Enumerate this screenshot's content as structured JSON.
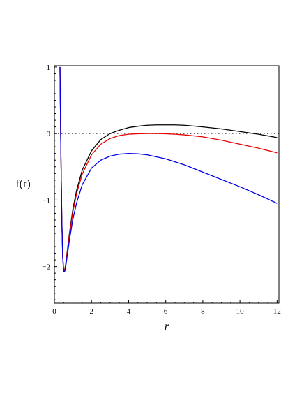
{
  "chart_data": {
    "type": "line",
    "title": "",
    "xlabel": "r",
    "ylabel": "f(r)",
    "xlim": [
      0,
      12.1
    ],
    "ylim": [
      -2.55,
      1.02
    ],
    "xticks": [
      0,
      2,
      4,
      6,
      8,
      10,
      12
    ],
    "xtick_labels": [
      "0",
      "2",
      "4",
      "6",
      "8",
      "10",
      "12"
    ],
    "yticks": [
      1,
      0,
      -1,
      -2
    ],
    "ytick_labels": [
      "1",
      "0",
      "−1",
      "−2"
    ],
    "grid": false,
    "reference_line": {
      "y": 0,
      "style": "dotted",
      "color": "#555555"
    },
    "series": [
      {
        "color": "#000000",
        "x": [
          0.3,
          0.35,
          0.4,
          0.45,
          0.5,
          0.55,
          0.6,
          0.7,
          0.8,
          1.0,
          1.2,
          1.5,
          2.0,
          2.5,
          3.0,
          3.5,
          4.0,
          4.5,
          5.0,
          5.5,
          6.0,
          6.5,
          7.0,
          8.0,
          9.0,
          10.0,
          11.0,
          12.0
        ],
        "y": [
          1.0,
          -0.3,
          -1.3,
          -1.85,
          -2.05,
          -2.05,
          -1.98,
          -1.75,
          -1.52,
          -1.13,
          -0.85,
          -0.55,
          -0.26,
          -0.09,
          0.0,
          0.05,
          0.09,
          0.11,
          0.125,
          0.13,
          0.13,
          0.13,
          0.125,
          0.1,
          0.07,
          0.03,
          -0.01,
          -0.06
        ]
      },
      {
        "color": "#e60000",
        "x": [
          0.3,
          0.35,
          0.4,
          0.45,
          0.5,
          0.55,
          0.6,
          0.7,
          0.8,
          1.0,
          1.2,
          1.5,
          2.0,
          2.5,
          3.0,
          3.5,
          4.0,
          4.5,
          5.0,
          5.5,
          6.0,
          6.5,
          7.0,
          8.0,
          9.0,
          10.0,
          11.0,
          12.0
        ],
        "y": [
          1.0,
          -0.3,
          -1.3,
          -1.87,
          -2.06,
          -2.06,
          -2.0,
          -1.77,
          -1.55,
          -1.17,
          -0.9,
          -0.61,
          -0.32,
          -0.16,
          -0.075,
          -0.03,
          -0.01,
          -0.003,
          0.0,
          0.0,
          -0.003,
          -0.01,
          -0.02,
          -0.05,
          -0.1,
          -0.16,
          -0.22,
          -0.29
        ]
      },
      {
        "color": "#0000e6",
        "x": [
          0.3,
          0.35,
          0.4,
          0.45,
          0.5,
          0.55,
          0.6,
          0.7,
          0.8,
          1.0,
          1.2,
          1.5,
          2.0,
          2.5,
          3.0,
          3.5,
          4.0,
          4.5,
          5.0,
          6.0,
          7.0,
          8.0,
          9.0,
          10.0,
          11.0,
          12.0
        ],
        "y": [
          1.0,
          -0.3,
          -1.3,
          -1.88,
          -2.07,
          -2.08,
          -2.02,
          -1.82,
          -1.62,
          -1.28,
          -1.04,
          -0.77,
          -0.52,
          -0.4,
          -0.34,
          -0.31,
          -0.3,
          -0.305,
          -0.32,
          -0.38,
          -0.47,
          -0.58,
          -0.69,
          -0.8,
          -0.92,
          -1.05
        ]
      }
    ]
  }
}
